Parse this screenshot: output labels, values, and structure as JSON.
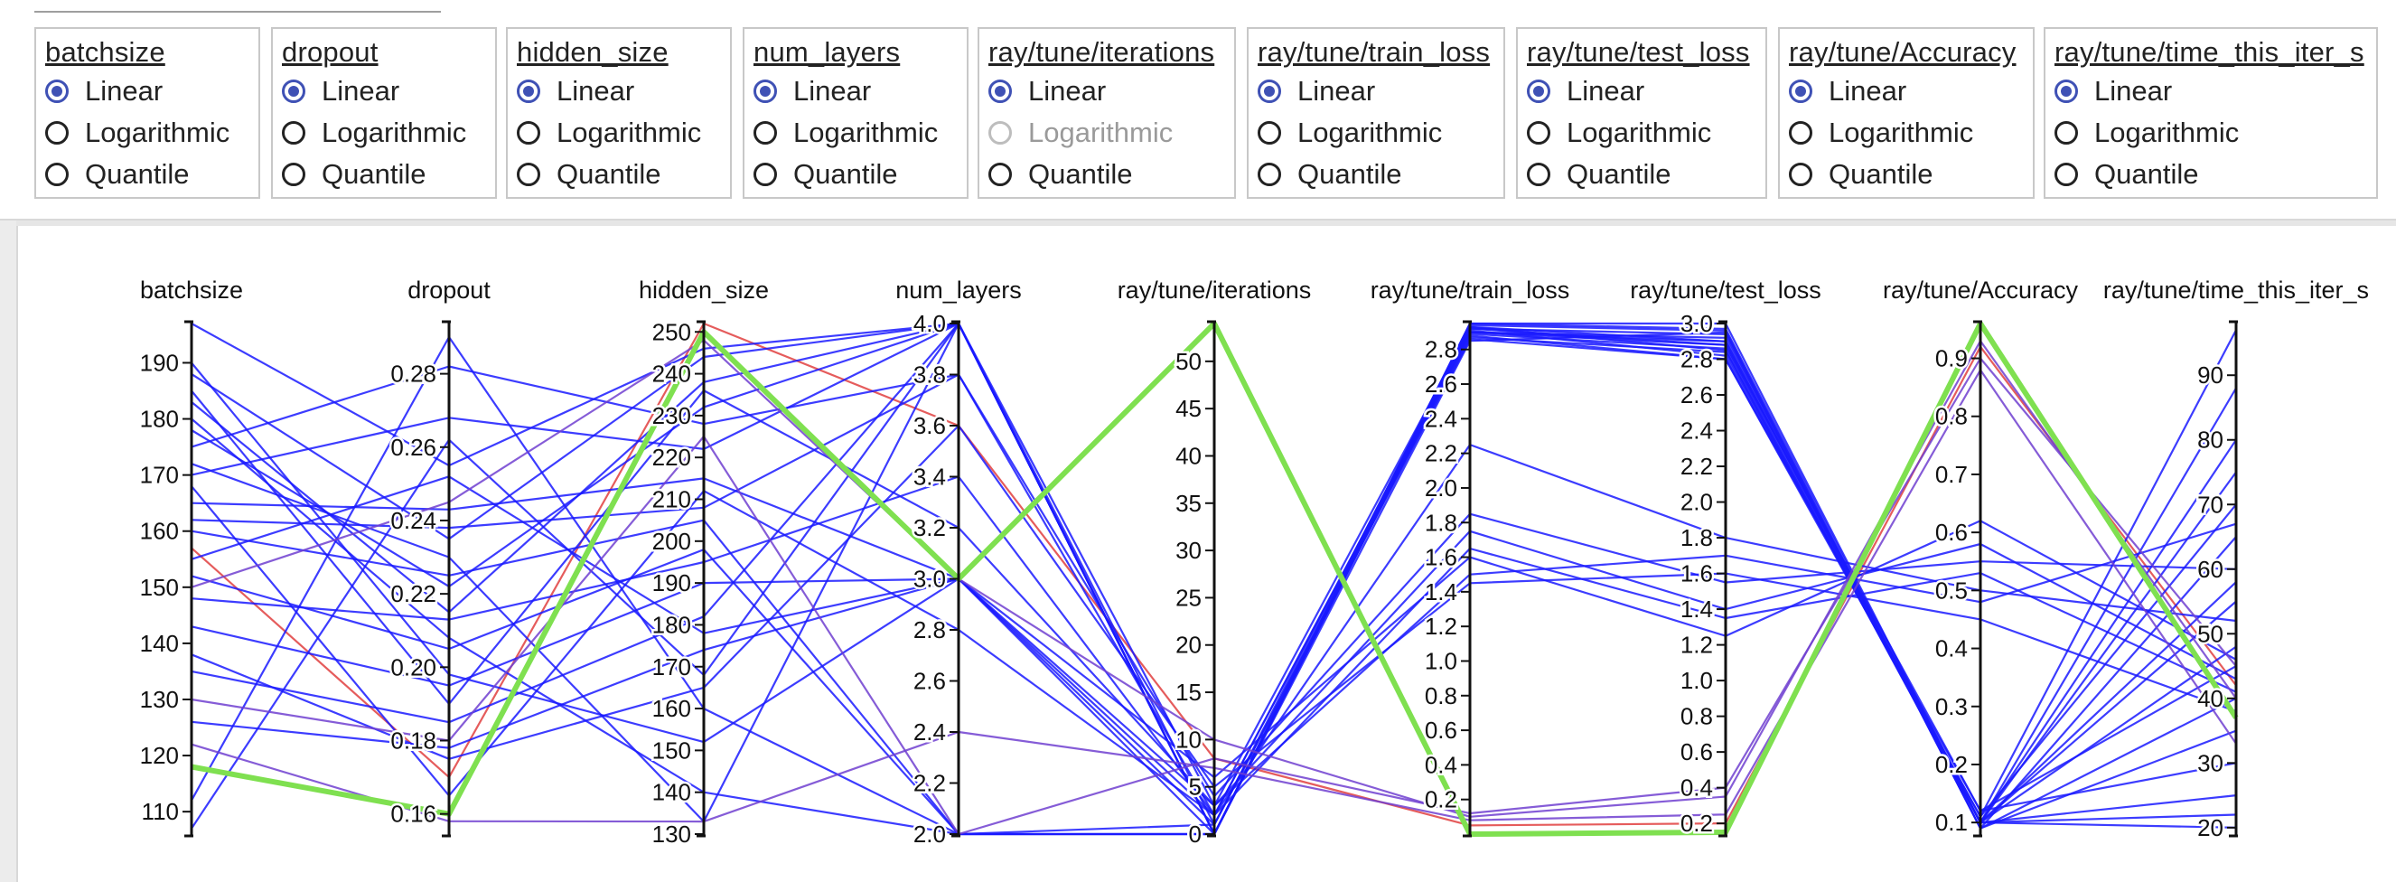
{
  "scale_options": [
    "Linear",
    "Logarithmic",
    "Quantile"
  ],
  "controls": [
    {
      "title": "batchsize",
      "selected": 0,
      "disabled": []
    },
    {
      "title": "dropout",
      "selected": 0,
      "disabled": []
    },
    {
      "title": "hidden_size",
      "selected": 0,
      "disabled": []
    },
    {
      "title": "num_layers",
      "selected": 0,
      "disabled": []
    },
    {
      "title": "ray/tune/iterations",
      "selected": 0,
      "disabled": [
        1
      ]
    },
    {
      "title": "ray/tune/train_loss",
      "selected": 0,
      "disabled": []
    },
    {
      "title": "ray/tune/test_loss",
      "selected": 0,
      "disabled": []
    },
    {
      "title": "ray/tune/Accuracy",
      "selected": 0,
      "disabled": []
    },
    {
      "title": "ray/tune/time_this_iter_s",
      "selected": 0,
      "disabled": []
    }
  ],
  "colors": {
    "line_low": "#1a1aff",
    "line_mid": "#7040d0",
    "line_high": "#e04040",
    "highlight": "#7fe050",
    "radio_accent": "#3f51b5"
  },
  "chart_data": {
    "type": "parallel_coordinates",
    "axes": [
      {
        "name": "batchsize",
        "range": [
          106,
          197
        ],
        "ticks": [
          "110",
          "120",
          "130",
          "140",
          "150",
          "160",
          "170",
          "180",
          "190"
        ],
        "tick_values": [
          110,
          120,
          130,
          140,
          150,
          160,
          170,
          180,
          190
        ]
      },
      {
        "name": "dropout",
        "range": [
          0.1545,
          0.2937
        ],
        "ticks": [
          "0.16",
          "0.18",
          "0.20",
          "0.22",
          "0.24",
          "0.26",
          "0.28"
        ],
        "tick_values": [
          0.16,
          0.18,
          0.2,
          0.22,
          0.24,
          0.26,
          0.28
        ]
      },
      {
        "name": "hidden_size",
        "range": [
          130,
          252
        ],
        "ticks": [
          "130",
          "140",
          "150",
          "160",
          "170",
          "180",
          "190",
          "200",
          "210",
          "220",
          "230",
          "240",
          "250"
        ],
        "tick_values": [
          130,
          140,
          150,
          160,
          170,
          180,
          190,
          200,
          210,
          220,
          230,
          240,
          250
        ]
      },
      {
        "name": "num_layers",
        "range": [
          2.0,
          4.0
        ],
        "ticks": [
          "2.0",
          "2.2",
          "2.4",
          "2.6",
          "2.8",
          "3.0",
          "3.2",
          "3.4",
          "3.6",
          "3.8",
          "4.0"
        ],
        "tick_values": [
          2.0,
          2.2,
          2.4,
          2.6,
          2.8,
          3.0,
          3.2,
          3.4,
          3.6,
          3.8,
          4.0
        ]
      },
      {
        "name": "ray/tune/iterations",
        "range": [
          0,
          54
        ],
        "ticks": [
          "0",
          "5",
          "10",
          "15",
          "20",
          "25",
          "30",
          "35",
          "40",
          "45",
          "50"
        ],
        "tick_values": [
          0,
          5,
          10,
          15,
          20,
          25,
          30,
          35,
          40,
          45,
          50
        ]
      },
      {
        "name": "ray/tune/train_loss",
        "range": [
          0.0,
          2.95
        ],
        "ticks": [
          "0.2",
          "0.4",
          "0.6",
          "0.8",
          "1.0",
          "1.2",
          "1.4",
          "1.6",
          "1.8",
          "2.0",
          "2.2",
          "2.4",
          "2.6",
          "2.8"
        ],
        "tick_values": [
          0.2,
          0.4,
          0.6,
          0.8,
          1.0,
          1.2,
          1.4,
          1.6,
          1.8,
          2.0,
          2.2,
          2.4,
          2.6,
          2.8
        ]
      },
      {
        "name": "ray/tune/test_loss",
        "range": [
          0.14,
          3.0
        ],
        "ticks": [
          "0.2",
          "0.4",
          "0.6",
          "0.8",
          "1.0",
          "1.2",
          "1.4",
          "1.6",
          "1.8",
          "2.0",
          "2.2",
          "2.4",
          "2.6",
          "2.8",
          "3.0"
        ],
        "tick_values": [
          0.2,
          0.4,
          0.6,
          0.8,
          1.0,
          1.2,
          1.4,
          1.6,
          1.8,
          2.0,
          2.2,
          2.4,
          2.6,
          2.8,
          3.0
        ]
      },
      {
        "name": "ray/tune/Accuracy",
        "range": [
          0.08,
          0.96
        ],
        "ticks": [
          "0.1",
          "0.2",
          "0.3",
          "0.4",
          "0.5",
          "0.6",
          "0.7",
          "0.8",
          "0.9"
        ],
        "tick_values": [
          0.1,
          0.2,
          0.3,
          0.4,
          0.5,
          0.6,
          0.7,
          0.8,
          0.9
        ]
      },
      {
        "name": "ray/tune/time_this_iter_s",
        "range": [
          19,
          98
        ],
        "ticks": [
          "20",
          "30",
          "40",
          "50",
          "60",
          "70",
          "80",
          "90"
        ],
        "tick_values": [
          20,
          30,
          40,
          50,
          60,
          70,
          80,
          90
        ]
      }
    ],
    "series": [
      {
        "values": [
          118,
          0.16,
          250,
          3.0,
          54,
          0.0,
          0.15,
          0.96,
          37
        ],
        "color_key": "highlight"
      },
      {
        "values": [
          157,
          0.17,
          252,
          3.6,
          8,
          0.05,
          0.2,
          0.92,
          42
        ],
        "color_key": "line_high"
      },
      {
        "values": [
          197,
          0.255,
          246,
          4.0,
          0,
          2.9,
          2.9,
          0.1,
          80
        ],
        "color_key": "line_low"
      },
      {
        "values": [
          188,
          0.235,
          244,
          4.0,
          0,
          2.85,
          2.95,
          0.09,
          65
        ],
        "color_key": "line_low"
      },
      {
        "values": [
          183,
          0.215,
          238,
          4.0,
          1,
          2.93,
          2.85,
          0.1,
          55
        ],
        "color_key": "line_low"
      },
      {
        "values": [
          175,
          0.282,
          228,
          3.8,
          2,
          2.88,
          2.8,
          0.11,
          97
        ],
        "color_key": "line_low"
      },
      {
        "values": [
          170,
          0.268,
          222,
          4.0,
          0,
          2.95,
          3.0,
          0.1,
          48
        ],
        "color_key": "line_low"
      },
      {
        "values": [
          165,
          0.243,
          215,
          3.0,
          3,
          2.92,
          2.88,
          0.12,
          30
        ],
        "color_key": "line_low"
      },
      {
        "values": [
          160,
          0.225,
          205,
          2.0,
          0,
          2.9,
          2.92,
          0.1,
          22
        ],
        "color_key": "line_low"
      },
      {
        "values": [
          152,
          0.205,
          198,
          2.0,
          1,
          2.87,
          2.84,
          0.1,
          25
        ],
        "color_key": "line_low"
      },
      {
        "values": [
          143,
          0.195,
          190,
          3.0,
          0,
          2.94,
          2.96,
          0.09,
          40
        ],
        "color_key": "line_low"
      },
      {
        "values": [
          135,
          0.185,
          182,
          4.0,
          0,
          2.91,
          2.82,
          0.11,
          70
        ],
        "color_key": "line_low"
      },
      {
        "values": [
          126,
          0.178,
          174,
          3.0,
          2,
          2.89,
          2.86,
          0.1,
          58
        ],
        "color_key": "line_low"
      },
      {
        "values": [
          107,
          0.262,
          168,
          4.0,
          0,
          2.93,
          2.9,
          0.1,
          88
        ],
        "color_key": "line_low"
      },
      {
        "values": [
          112,
          0.29,
          160,
          2.0,
          0,
          2.92,
          2.94,
          0.09,
          35
        ],
        "color_key": "line_low"
      },
      {
        "values": [
          190,
          0.198,
          152,
          3.0,
          1,
          2.86,
          2.8,
          0.12,
          45
        ],
        "color_key": "line_low"
      },
      {
        "values": [
          180,
          0.208,
          140,
          2.0,
          0,
          2.9,
          2.88,
          0.1,
          20
        ],
        "color_key": "line_low"
      },
      {
        "values": [
          172,
          0.23,
          133,
          4.0,
          0,
          2.95,
          2.97,
          0.1,
          75
        ],
        "color_key": "line_low"
      },
      {
        "values": [
          178,
          0.222,
          232,
          4.0,
          3,
          1.75,
          1.4,
          0.58,
          43
        ],
        "color_key": "line_low"
      },
      {
        "values": [
          162,
          0.238,
          208,
          3.8,
          4,
          1.85,
          1.55,
          0.55,
          60
        ],
        "color_key": "line_low"
      },
      {
        "values": [
          148,
          0.213,
          195,
          3.4,
          2,
          2.25,
          1.8,
          0.5,
          52
        ],
        "color_key": "line_low"
      },
      {
        "values": [
          155,
          0.252,
          178,
          3.0,
          6,
          1.6,
          1.25,
          0.62,
          46
        ],
        "color_key": "line_low"
      },
      {
        "values": [
          138,
          0.175,
          165,
          3.6,
          5,
          1.45,
          1.6,
          0.45,
          38
        ],
        "color_key": "line_low"
      },
      {
        "values": [
          185,
          0.19,
          236,
          3.2,
          3,
          1.5,
          1.7,
          0.48,
          67
        ],
        "color_key": "line_low"
      },
      {
        "values": [
          168,
          0.165,
          212,
          2.8,
          2,
          1.65,
          1.35,
          0.53,
          41
        ],
        "color_key": "line_low"
      },
      {
        "values": [
          150,
          0.245,
          248,
          3.0,
          10,
          0.1,
          0.35,
          0.93,
          40
        ],
        "color_key": "line_mid"
      },
      {
        "values": [
          130,
          0.18,
          225,
          2.0,
          8,
          0.12,
          0.4,
          0.9,
          45
        ],
        "color_key": "line_mid"
      },
      {
        "values": [
          122,
          0.158,
          133,
          2.4,
          7,
          0.08,
          0.25,
          0.88,
          33
        ],
        "color_key": "line_mid"
      }
    ]
  }
}
